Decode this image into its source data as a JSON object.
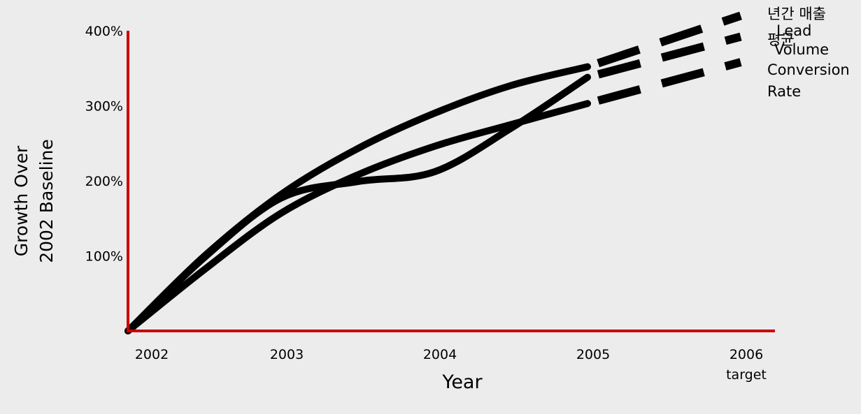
{
  "chart_data": {
    "type": "line",
    "title": "",
    "xlabel": "Year",
    "ylabel": [
      "Growth Over",
      "2002 Baseline"
    ],
    "x_tick_labels": [
      {
        "value": 2002,
        "lines": [
          "2002"
        ]
      },
      {
        "value": 2003,
        "lines": [
          "2003"
        ]
      },
      {
        "value": 2004,
        "lines": [
          "2004"
        ]
      },
      {
        "value": 2005,
        "lines": [
          "2005"
        ]
      },
      {
        "value": 2006,
        "lines": [
          "2006",
          "target"
        ]
      }
    ],
    "y_tick_labels": [
      "100%",
      "200%",
      "300%",
      "400%"
    ],
    "y_tick_values": [
      100,
      200,
      300,
      400
    ],
    "xlim": [
      2002,
      2006
    ],
    "ylim": [
      0,
      400
    ],
    "grid": false,
    "axis_color": "#cc0000",
    "line_color": "#000000",
    "background": "#ececec",
    "actual_through": 2005,
    "projection_style": "dashed",
    "series": [
      {
        "name": "년간 매출 평균",
        "x": [
          2002,
          2002.5,
          2003,
          2003.5,
          2004,
          2004.5,
          2005,
          2006
        ],
        "y": [
          0,
          100,
          182,
          243,
          290,
          327,
          352,
          420
        ]
      },
      {
        "name": "Lead Volume",
        "x": [
          2002,
          2002.5,
          2003,
          2003.5,
          2004,
          2004.5,
          2005,
          2006
        ],
        "y": [
          0,
          98,
          177,
          199,
          212,
          270,
          338,
          392
        ]
      },
      {
        "name": "Conversion Rate",
        "x": [
          2002,
          2002.5,
          2003,
          2003.5,
          2004,
          2004.5,
          2005,
          2006
        ],
        "y": [
          0,
          82,
          157,
          208,
          246,
          275,
          303,
          358
        ]
      }
    ],
    "series_labels": [
      {
        "series": 0,
        "lines": [
          "년간 매출",
          "평균"
        ]
      },
      {
        "series": 1,
        "lines": [
          "Lead",
          "Volume"
        ]
      },
      {
        "series": 2,
        "lines": [
          "Conversion",
          "Rate"
        ]
      }
    ],
    "legend": "end-of-line labels, right"
  }
}
